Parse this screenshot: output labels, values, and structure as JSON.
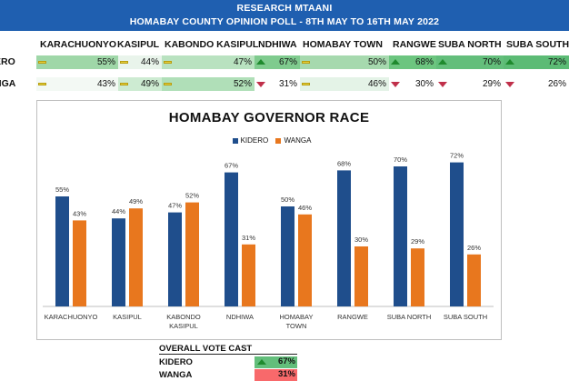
{
  "banner": {
    "line1": "RESEARCH MTAANI",
    "line2": "HOMABAY COUNTY OPINION POLL - 8TH MAY TO 16TH MAY 2022"
  },
  "table": {
    "headers": [
      "KARACHUONYO",
      "KASIPUL",
      "KABONDO KASIPUL",
      "NDHIWA",
      "HOMABAY TOWN",
      "RANGWE",
      "SUBA NORTH",
      "SUBA SOUTH"
    ],
    "rows": [
      {
        "label": "ERO",
        "values": [
          "55%",
          "44%",
          "47%",
          "67%",
          "50%",
          "68%",
          "70%",
          "72%"
        ]
      },
      {
        "label": "NGA",
        "values": [
          "43%",
          "49%",
          "52%",
          "31%",
          "46%",
          "30%",
          "29%",
          "26%"
        ]
      }
    ]
  },
  "colors": {
    "kidero": "#1f4e8c",
    "wanga": "#e8771e",
    "banner": "#1f5fb0",
    "green": "#63be7b",
    "red": "#f8696b"
  },
  "chart_data": {
    "type": "bar",
    "title": "HOMABAY GOVERNOR RACE",
    "categories": [
      "KARACHUONYO",
      "KASIPUL",
      "KABONDO KASIPUL",
      "NDHIWA",
      "HOMABAY TOWN",
      "RANGWE",
      "SUBA NORTH",
      "SUBA SOUTH"
    ],
    "series": [
      {
        "name": "KIDERO",
        "values": [
          55,
          44,
          47,
          67,
          50,
          68,
          70,
          72
        ]
      },
      {
        "name": "WANGA",
        "values": [
          43,
          49,
          52,
          31,
          46,
          30,
          29,
          26
        ]
      }
    ],
    "value_labels": [
      [
        "55%",
        "44%",
        "47%",
        "67%",
        "50%",
        "68%",
        "70%",
        "72%"
      ],
      [
        "43%",
        "49%",
        "52%",
        "31%",
        "46%",
        "30%",
        "29%",
        "26%"
      ]
    ],
    "category_lines": [
      [
        "KARACHUONYO"
      ],
      [
        "KASIPUL"
      ],
      [
        "KABONDO",
        "KASIPUL"
      ],
      [
        "NDHIWA"
      ],
      [
        "HOMABAY",
        "TOWN"
      ],
      [
        "RANGWE"
      ],
      [
        "SUBA NORTH"
      ],
      [
        "SUBA SOUTH"
      ]
    ],
    "legend": "top-center",
    "ylim": [
      0,
      80
    ],
    "grid": false
  },
  "summary": {
    "title": "OVERALL VOTE CAST",
    "rows": [
      {
        "label": "KIDERO",
        "value": "67%"
      },
      {
        "label": "WANGA",
        "value": "31%"
      }
    ]
  }
}
